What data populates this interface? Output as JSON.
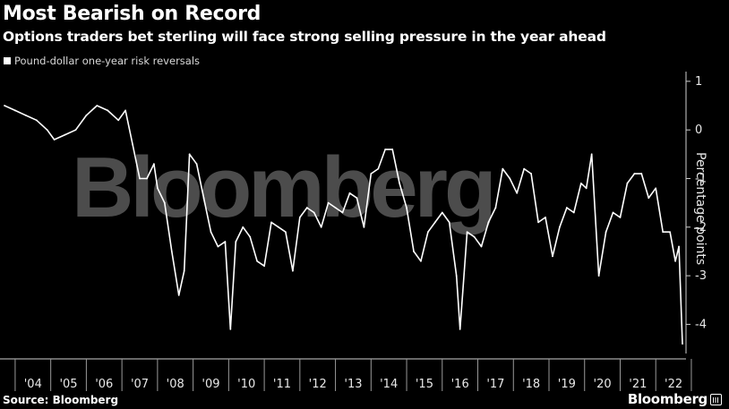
{
  "header": {
    "title": "Most Bearish on Record",
    "subtitle": "Options traders bet sterling will face strong selling pressure in the year ahead"
  },
  "legend": {
    "label": "Pound-dollar one-year risk reversals"
  },
  "footer": {
    "source": "Source: Bloomberg",
    "brand": "Bloomberg"
  },
  "watermark": "Bloomberg",
  "chart_data": {
    "type": "line",
    "title": "Most Bearish on Record",
    "subtitle": "Options traders bet sterling will face strong selling pressure in the year ahead",
    "xlabel": "",
    "ylabel": "Percentage points",
    "xlim": [
      2003.7,
      2022.85
    ],
    "ylim": [
      -4.6,
      1.2
    ],
    "yticks": [
      1,
      0,
      -1,
      -2,
      -3,
      -4
    ],
    "x_tick_labels": [
      "'04",
      "'05",
      "'06",
      "'07",
      "'08",
      "'09",
      "'10",
      "'11",
      "'12",
      "'13",
      "'14",
      "'15",
      "'16",
      "'17",
      "'18",
      "'19",
      "'20",
      "'21",
      "'22"
    ],
    "x_tick_years": [
      2004,
      2005,
      2006,
      2007,
      2008,
      2009,
      2010,
      2011,
      2012,
      2013,
      2014,
      2015,
      2016,
      2017,
      2018,
      2019,
      2020,
      2021,
      2022
    ],
    "grid": false,
    "legend_position": "top-left",
    "series": [
      {
        "name": "Pound-dollar one-year risk reversals",
        "color": "#ffffff",
        "x": [
          2003.7,
          2004.0,
          2004.3,
          2004.6,
          2004.9,
          2005.1,
          2005.4,
          2005.7,
          2006.0,
          2006.3,
          2006.6,
          2006.9,
          2007.1,
          2007.3,
          2007.5,
          2007.7,
          2007.9,
          2008.0,
          2008.2,
          2008.4,
          2008.6,
          2008.75,
          2008.9,
          2009.1,
          2009.3,
          2009.5,
          2009.7,
          2009.9,
          2010.05,
          2010.2,
          2010.4,
          2010.6,
          2010.8,
          2011.0,
          2011.2,
          2011.4,
          2011.6,
          2011.8,
          2012.0,
          2012.2,
          2012.4,
          2012.6,
          2012.8,
          2013.0,
          2013.2,
          2013.4,
          2013.6,
          2013.8,
          2014.0,
          2014.2,
          2014.4,
          2014.6,
          2014.8,
          2015.0,
          2015.2,
          2015.4,
          2015.6,
          2015.8,
          2016.0,
          2016.2,
          2016.4,
          2016.5,
          2016.7,
          2016.9,
          2017.1,
          2017.3,
          2017.5,
          2017.7,
          2017.9,
          2018.1,
          2018.3,
          2018.5,
          2018.7,
          2018.9,
          2019.1,
          2019.3,
          2019.5,
          2019.7,
          2019.9,
          2020.05,
          2020.2,
          2020.4,
          2020.6,
          2020.8,
          2021.0,
          2021.2,
          2021.4,
          2021.6,
          2021.8,
          2022.0,
          2022.2,
          2022.4,
          2022.55,
          2022.65,
          2022.75
        ],
        "values": [
          0.5,
          0.4,
          0.3,
          0.2,
          0.0,
          -0.2,
          -0.1,
          0.0,
          0.3,
          0.5,
          0.4,
          0.2,
          0.4,
          -0.3,
          -1.0,
          -1.0,
          -0.7,
          -1.2,
          -1.5,
          -2.5,
          -3.4,
          -2.9,
          -0.5,
          -0.7,
          -1.4,
          -2.1,
          -2.4,
          -2.3,
          -4.1,
          -2.3,
          -2.0,
          -2.2,
          -2.7,
          -2.8,
          -1.9,
          -2.0,
          -2.1,
          -2.9,
          -1.8,
          -1.6,
          -1.7,
          -2.0,
          -1.5,
          -1.6,
          -1.7,
          -1.3,
          -1.4,
          -2.0,
          -0.9,
          -0.8,
          -0.4,
          -0.4,
          -1.1,
          -1.6,
          -2.5,
          -2.7,
          -2.1,
          -1.9,
          -1.7,
          -1.9,
          -3.0,
          -4.1,
          -2.1,
          -2.2,
          -2.4,
          -1.9,
          -1.6,
          -0.8,
          -1.0,
          -1.3,
          -0.8,
          -0.9,
          -1.9,
          -1.8,
          -2.6,
          -2.0,
          -1.6,
          -1.7,
          -1.1,
          -1.2,
          -0.5,
          -3.0,
          -2.1,
          -1.7,
          -1.8,
          -1.1,
          -0.9,
          -0.9,
          -1.4,
          -1.2,
          -2.1,
          -2.1,
          -2.7,
          -2.4,
          -4.4
        ]
      }
    ]
  }
}
